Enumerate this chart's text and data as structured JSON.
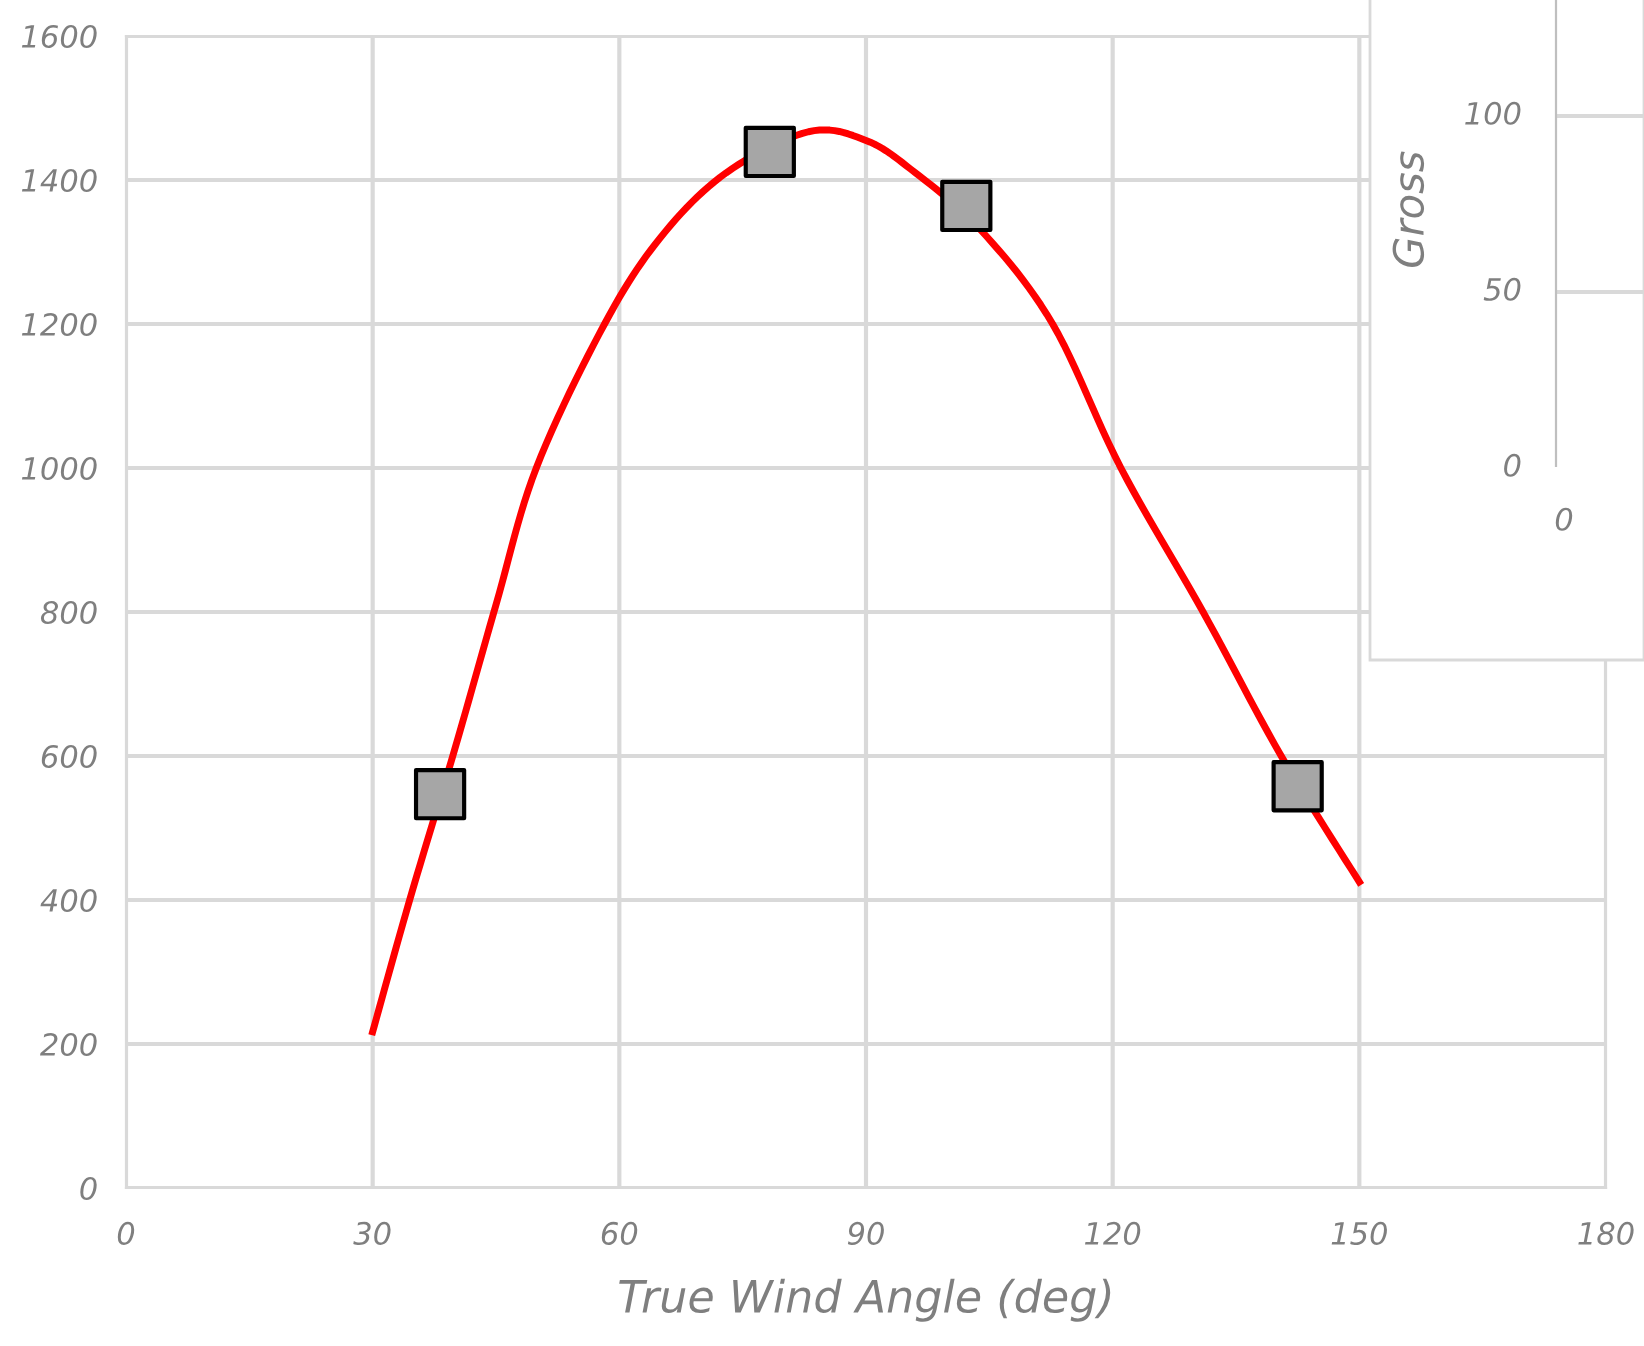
{
  "chart_data": [
    {
      "type": "line",
      "xlabel": "True Wind Angle (deg)",
      "xlim": [
        0,
        180
      ],
      "xticks": [
        0,
        30,
        60,
        90,
        120,
        150,
        180
      ],
      "ylim": [
        0,
        1600
      ],
      "yticks": [
        0,
        200,
        400,
        600,
        800,
        1000,
        1200,
        1400,
        1600
      ],
      "grid": true,
      "series": [
        {
          "type": "line",
          "marker": "none",
          "color": "#ff0000",
          "x": [
            30,
            34.5,
            40,
            45,
            49.9,
            58.2,
            65,
            73,
            83,
            90,
            96,
            104,
            112.7,
            121,
            131,
            140.5,
            150
          ],
          "values": [
            217,
            400,
            610,
            810,
            1000,
            1200,
            1320,
            1410,
            1467,
            1455,
            1410,
            1330,
            1200,
            1000,
            800,
            600,
            425
          ]
        },
        {
          "type": "scatter",
          "color": "#a6a6a6",
          "marker": "square",
          "x": [
            38.2,
            78.3,
            102.2,
            142.5
          ],
          "values": [
            547,
            1439,
            1364,
            558
          ]
        }
      ]
    },
    {
      "type": "other",
      "ylabel": "Gross",
      "annotations": [
        "100",
        "50",
        "0",
        "0"
      ]
    }
  ]
}
